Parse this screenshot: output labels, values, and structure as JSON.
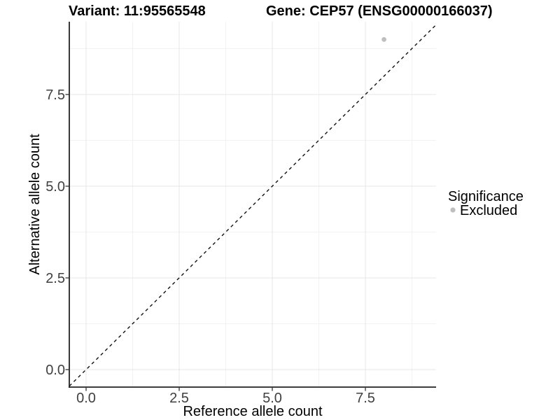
{
  "header": {
    "variant_title": "Variant: 11:95565548",
    "gene_title": "Gene: CEP57 (ENSG00000166037)"
  },
  "axes": {
    "x": {
      "label": "Reference allele count",
      "tick_labels": [
        "0.0",
        "2.5",
        "5.0",
        "7.5"
      ]
    },
    "y": {
      "label": "Alternative allele count",
      "tick_labels": [
        "0.0",
        "2.5",
        "5.0",
        "7.5"
      ]
    }
  },
  "legend": {
    "title": "Significance",
    "items": [
      {
        "label": "Excluded",
        "color": "#bebebe"
      }
    ]
  },
  "chart_data": {
    "type": "scatter",
    "title": "Variant: 11:95565548 | Gene: CEP57 (ENSG00000166037)",
    "xlabel": "Reference allele count",
    "ylabel": "Alternative allele count",
    "xlim": [
      -0.45,
      9.45
    ],
    "ylim": [
      -0.45,
      9.45
    ],
    "x_ticks": [
      0.0,
      2.5,
      5.0,
      7.5
    ],
    "y_ticks": [
      0.0,
      2.5,
      5.0,
      7.5
    ],
    "grid": "major and minor, light gray on white",
    "legend_position": "right",
    "series": [
      {
        "name": "Excluded",
        "color": "#bebebe",
        "points": [
          [
            8,
            9
          ]
        ]
      }
    ],
    "annotations": [
      {
        "type": "abline",
        "slope": 1,
        "intercept": 0,
        "linetype": "dashed",
        "color": "#111111"
      }
    ]
  },
  "colors": {
    "background": "#ffffff",
    "grid_major": "#e7e7e7",
    "grid_minor": "#f2f2f2",
    "axis_line": "#222222",
    "tick_mark": "#333333",
    "point": "#bebebe",
    "dashed_line": "#111111"
  }
}
